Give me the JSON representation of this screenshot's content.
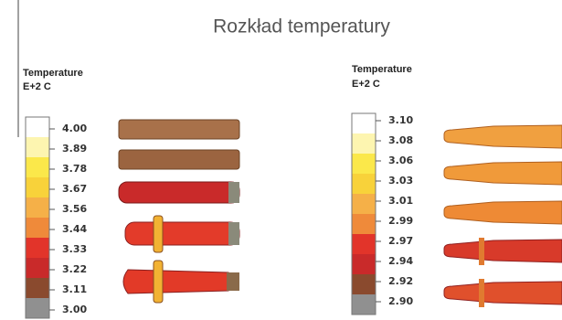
{
  "title": "Rozkład temperatury",
  "panels": [
    {
      "legend_title": "Temperature",
      "legend_unit": "E+2  C",
      "ticks": [
        "4.00",
        "3.89",
        "3.78",
        "3.67",
        "3.56",
        "3.44",
        "3.33",
        "3.22",
        "3.11",
        "3.00"
      ]
    },
    {
      "legend_title": "Temperature",
      "legend_unit": "E+2  C",
      "ticks": [
        "3.10",
        "3.08",
        "3.06",
        "3.03",
        "3.01",
        "2.99",
        "2.97",
        "2.94",
        "2.92",
        "2.90"
      ]
    }
  ]
}
